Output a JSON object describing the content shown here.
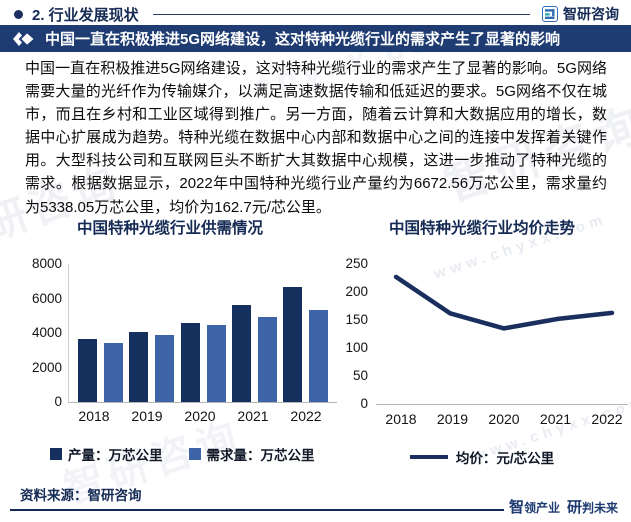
{
  "header": {
    "section_title": "2. 行业发展现状",
    "brand_name": "智研咨询"
  },
  "banner": {
    "title": "中国一直在积极推进5G网络建设，这对特种光缆行业的需求产生了显著的影响"
  },
  "body_text": "中国一直在积极推进5G网络建设，这对特种光缆行业的需求产生了显著的影响。5G网络需要大量的光纤作为传输媒介，以满足高速数据传输和低延迟的要求。5G网络不仅在城市，而且在乡村和工业区域得到推广。另一方面，随着云计算和大数据应用的增长，数据中心扩展成为趋势。特种光缆在数据中心内部和数据中心之间的连接中发挥着关键作用。大型科技公司和互联网巨头不断扩大其数据中心规模，这进一步推动了特种光缆的需求。根据数据显示，2022年中国特种光缆行业产量约为6672.56万芯公里，需求量约为5338.05万芯公里，均价为162.7元/芯公里。",
  "chart_data": [
    {
      "type": "bar",
      "title": "中国特种光缆行业供需情况",
      "categories": [
        "2018",
        "2019",
        "2020",
        "2021",
        "2022"
      ],
      "series": [
        {
          "name": "产量：万芯公里",
          "color": "#16305e",
          "values": [
            3640,
            4050,
            4580,
            5600,
            6672.56
          ]
        },
        {
          "name": "需求量：万芯公里",
          "color": "#3c64a6",
          "values": [
            3400,
            3890,
            4480,
            4950,
            5338.05
          ]
        }
      ],
      "ylim": [
        0,
        8000
      ],
      "yticks": [
        0,
        2000,
        4000,
        6000,
        8000
      ],
      "grid": false,
      "legend_position": "bottom"
    },
    {
      "type": "line",
      "title": "中国特种光缆行业均价走势",
      "categories": [
        "2018",
        "2019",
        "2020",
        "2021",
        "2022"
      ],
      "series": [
        {
          "name": "均价：元/芯公里",
          "color": "#1b2f5e",
          "values": [
            227,
            162,
            135,
            152,
            162.7
          ]
        }
      ],
      "ylim": [
        0,
        250
      ],
      "yticks": [
        0,
        50,
        100,
        150,
        200,
        250
      ],
      "grid": false,
      "legend_position": "bottom"
    }
  ],
  "footer": {
    "source": "资料来源：智研咨询",
    "slogan_parts": [
      "智",
      "领产业",
      "研",
      "判未来"
    ]
  },
  "watermark": {
    "items": [
      "智研咨询",
      "www.chyxx.com",
      "研咨询",
      "www.chyxx.com",
      "智研咨询",
      "chyxx.com"
    ]
  },
  "colors": {
    "banner_bg": "#1e3b72",
    "title_navy": "#152a54",
    "production_bar": "#16305e",
    "demand_bar": "#3c64a6",
    "price_line": "#1b2f5e"
  }
}
